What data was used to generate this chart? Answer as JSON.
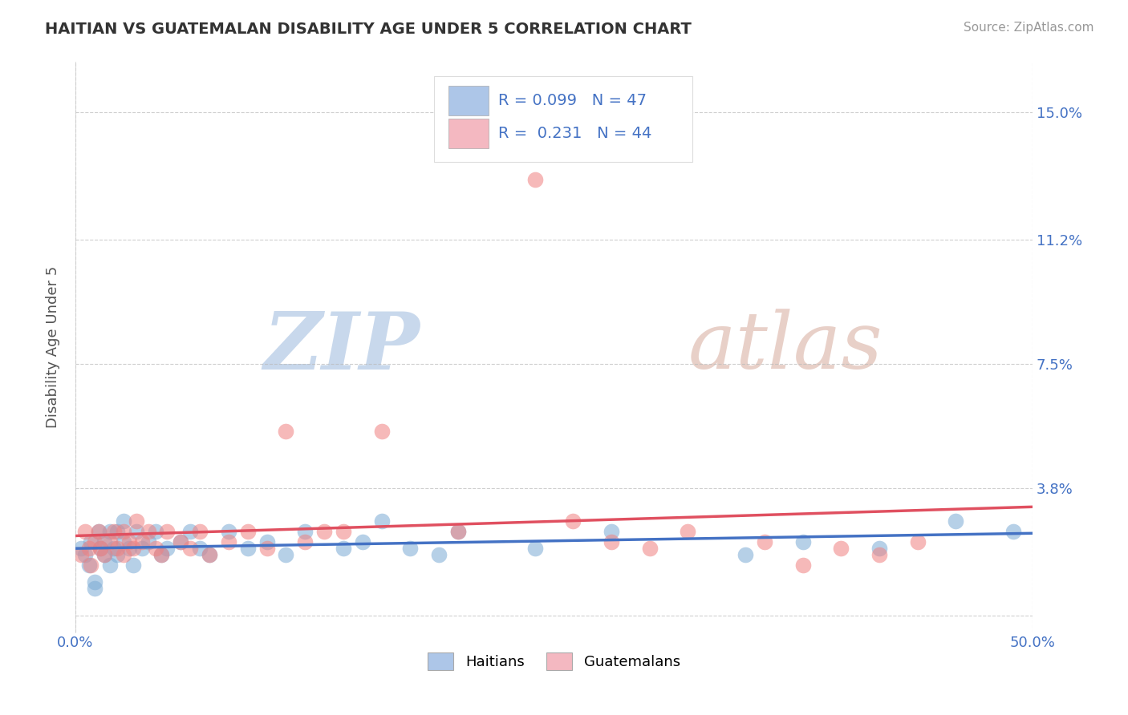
{
  "title": "HAITIAN VS GUATEMALAN DISABILITY AGE UNDER 5 CORRELATION CHART",
  "source_text": "Source: ZipAtlas.com",
  "ylabel": "Disability Age Under 5",
  "xlim": [
    0.0,
    0.5
  ],
  "ylim": [
    -0.005,
    0.165
  ],
  "yticks": [
    0.0,
    0.038,
    0.075,
    0.112,
    0.15
  ],
  "ytick_labels": [
    "",
    "3.8%",
    "7.5%",
    "11.2%",
    "15.0%"
  ],
  "xtick_labels": [
    "0.0%",
    "50.0%"
  ],
  "xticks": [
    0.0,
    0.5
  ],
  "background_color": "#ffffff",
  "grid_color": "#bbbbbb",
  "title_color": "#333333",
  "axis_label_color": "#555555",
  "tick_color": "#4472c4",
  "watermark_zip_color": "#ccd9e8",
  "watermark_atlas_color": "#d8c8c0",
  "r_value_color": "#4472c4",
  "legend_box_haitian": "#adc6e8",
  "legend_box_guatemalan": "#f4b8c1",
  "haitian_scatter_color": "#7baad4",
  "guatemalan_scatter_color": "#f08080",
  "haitian_line_color": "#4472c4",
  "guatemalan_line_color": "#e05060",
  "R_haitian": 0.099,
  "N_haitian": 47,
  "R_guatemalan": 0.231,
  "N_guatemalan": 44,
  "haitian_x": [
    0.003,
    0.005,
    0.007,
    0.008,
    0.01,
    0.01,
    0.012,
    0.013,
    0.015,
    0.015,
    0.018,
    0.018,
    0.02,
    0.022,
    0.022,
    0.025,
    0.025,
    0.028,
    0.03,
    0.032,
    0.035,
    0.038,
    0.042,
    0.045,
    0.048,
    0.055,
    0.06,
    0.065,
    0.07,
    0.08,
    0.09,
    0.1,
    0.11,
    0.12,
    0.14,
    0.15,
    0.16,
    0.175,
    0.19,
    0.2,
    0.24,
    0.28,
    0.35,
    0.38,
    0.42,
    0.46,
    0.49
  ],
  "haitian_y": [
    0.02,
    0.018,
    0.015,
    0.022,
    0.008,
    0.01,
    0.025,
    0.02,
    0.018,
    0.022,
    0.015,
    0.025,
    0.02,
    0.018,
    0.025,
    0.022,
    0.028,
    0.02,
    0.015,
    0.025,
    0.02,
    0.022,
    0.025,
    0.018,
    0.02,
    0.022,
    0.025,
    0.02,
    0.018,
    0.025,
    0.02,
    0.022,
    0.018,
    0.025,
    0.02,
    0.022,
    0.028,
    0.02,
    0.018,
    0.025,
    0.02,
    0.025,
    0.018,
    0.022,
    0.02,
    0.028,
    0.025
  ],
  "guatemalan_x": [
    0.003,
    0.005,
    0.007,
    0.008,
    0.01,
    0.012,
    0.013,
    0.015,
    0.018,
    0.02,
    0.022,
    0.025,
    0.025,
    0.028,
    0.03,
    0.032,
    0.035,
    0.038,
    0.042,
    0.045,
    0.048,
    0.055,
    0.06,
    0.065,
    0.07,
    0.08,
    0.09,
    0.1,
    0.11,
    0.12,
    0.14,
    0.16,
    0.2,
    0.24,
    0.28,
    0.32,
    0.36,
    0.4,
    0.42,
    0.44,
    0.13,
    0.26,
    0.3,
    0.38
  ],
  "guatemalan_y": [
    0.018,
    0.025,
    0.02,
    0.015,
    0.022,
    0.025,
    0.02,
    0.018,
    0.022,
    0.025,
    0.02,
    0.018,
    0.025,
    0.022,
    0.02,
    0.028,
    0.022,
    0.025,
    0.02,
    0.018,
    0.025,
    0.022,
    0.02,
    0.025,
    0.018,
    0.022,
    0.025,
    0.02,
    0.055,
    0.022,
    0.025,
    0.055,
    0.025,
    0.13,
    0.022,
    0.025,
    0.022,
    0.02,
    0.018,
    0.022,
    0.025,
    0.028,
    0.02,
    0.015
  ]
}
